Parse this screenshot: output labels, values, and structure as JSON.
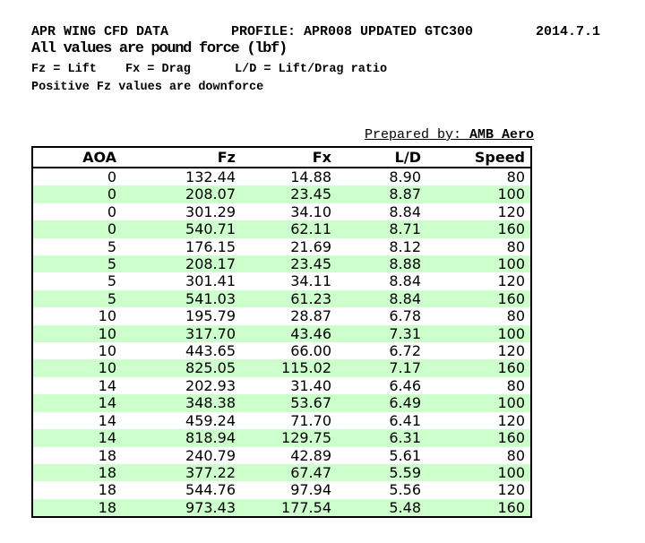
{
  "header": {
    "line1_left": "APR WING CFD DATA",
    "line1_mid": "PROFILE: APR008 UPDATED GTC300",
    "line1_right": "2014.7.1",
    "line2": "All values are pound force (lbf)",
    "line3_seg1": "Fz = Lift",
    "line3_seg2": "Fx = Drag",
    "line3_seg3": "L/D = Lift/Drag ratio",
    "line4": "Positive Fz values are downforce"
  },
  "prepared_by": {
    "label": "Prepared by: ",
    "name": "AMB Aero"
  },
  "table": {
    "columns": [
      "AOA",
      "Fz",
      "Fx",
      "L/D",
      "Speed"
    ],
    "rows": [
      [
        "0",
        "132.44",
        "14.88",
        "8.90",
        "80"
      ],
      [
        "0",
        "208.07",
        "23.45",
        "8.87",
        "100"
      ],
      [
        "0",
        "301.29",
        "34.10",
        "8.84",
        "120"
      ],
      [
        "0",
        "540.71",
        "62.11",
        "8.71",
        "160"
      ],
      [
        "5",
        "176.15",
        "21.69",
        "8.12",
        "80"
      ],
      [
        "5",
        "208.17",
        "23.45",
        "8.88",
        "100"
      ],
      [
        "5",
        "301.41",
        "34.11",
        "8.84",
        "120"
      ],
      [
        "5",
        "541.03",
        "61.23",
        "8.84",
        "160"
      ],
      [
        "10",
        "195.79",
        "28.87",
        "6.78",
        "80"
      ],
      [
        "10",
        "317.70",
        "43.46",
        "7.31",
        "100"
      ],
      [
        "10",
        "443.65",
        "66.00",
        "6.72",
        "120"
      ],
      [
        "10",
        "825.05",
        "115.02",
        "7.17",
        "160"
      ],
      [
        "14",
        "202.93",
        "31.40",
        "6.46",
        "80"
      ],
      [
        "14",
        "348.38",
        "53.67",
        "6.49",
        "100"
      ],
      [
        "14",
        "459.24",
        "71.70",
        "6.41",
        "120"
      ],
      [
        "14",
        "818.94",
        "129.75",
        "6.31",
        "160"
      ],
      [
        "18",
        "240.79",
        "42.89",
        "5.61",
        "80"
      ],
      [
        "18",
        "377.22",
        "67.47",
        "5.59",
        "100"
      ],
      [
        "18",
        "544.76",
        "97.94",
        "5.56",
        "120"
      ],
      [
        "18",
        "973.43",
        "177.54",
        "5.48",
        "160"
      ]
    ]
  },
  "colors": {
    "stripe_green": "#ccffcc",
    "border": "#000000",
    "text": "#000000",
    "background": "#ffffff"
  }
}
